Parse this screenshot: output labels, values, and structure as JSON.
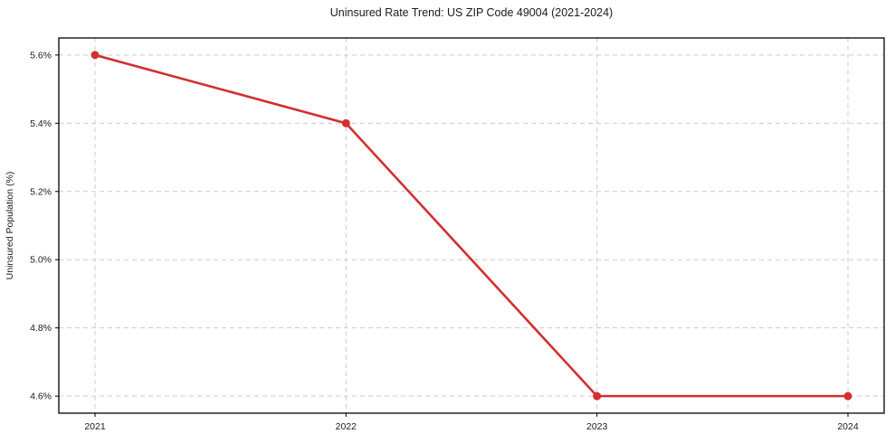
{
  "chart_data": {
    "type": "line",
    "title": "Uninsured Rate Trend: US ZIP Code 49004 (2021-2024)",
    "xlabel": "",
    "ylabel": "Uninsured Population (%)",
    "categories": [
      "2021",
      "2022",
      "2023",
      "2024"
    ],
    "series": [
      {
        "values": [
          5.6,
          5.4,
          4.6,
          4.6
        ]
      }
    ],
    "yticks": [
      4.6,
      4.8,
      5.0,
      5.2,
      5.4,
      5.6
    ],
    "ytick_labels": [
      "4.6%",
      "4.8%",
      "5.0%",
      "5.2%",
      "5.4%",
      "5.6%"
    ],
    "ylim": [
      4.55,
      5.65
    ],
    "grid": true,
    "legend_position": "none",
    "marker": "circle",
    "colors": {
      "line": "#d32f2f",
      "marker": "#d32f2f",
      "grid": "#cccccc",
      "axis": "#000000",
      "text": "#1a1a1a"
    }
  }
}
